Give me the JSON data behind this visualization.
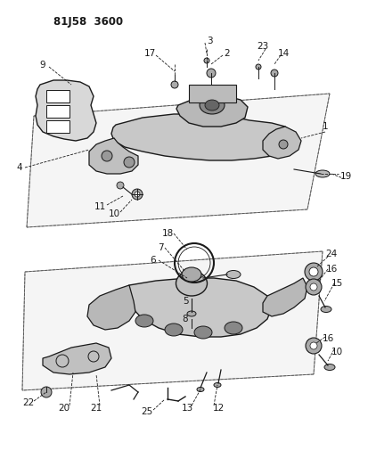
{
  "title": "81J58 3600",
  "bg_color": "#ffffff",
  "line_color": "#1a1a1a",
  "figsize": [
    4.13,
    5.33
  ],
  "dpi": 100,
  "fig_w": 413,
  "fig_h": 533
}
